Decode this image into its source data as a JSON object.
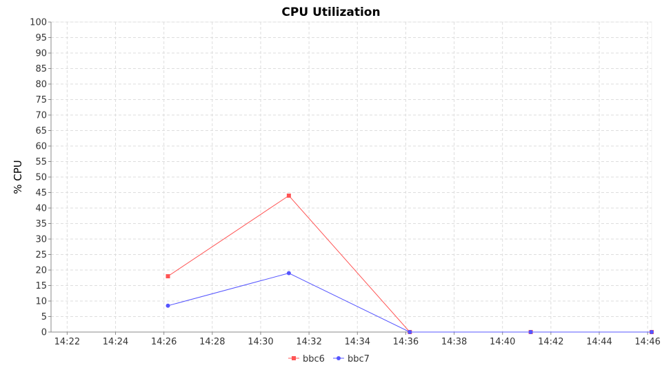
{
  "chart_data": {
    "type": "line",
    "title": "CPU Utilization",
    "xlabel": "",
    "ylabel": "% CPU",
    "x_ticks": [
      "14:22",
      "14:24",
      "14:26",
      "14:28",
      "14:30",
      "14:32",
      "14:34",
      "14:36",
      "14:38",
      "14:40",
      "14:42",
      "14:44",
      "14:46"
    ],
    "xlim": [
      "14:21:20",
      "14:46:10"
    ],
    "ylim": [
      0,
      100
    ],
    "y_ticks": [
      0,
      5,
      10,
      15,
      20,
      25,
      30,
      35,
      40,
      45,
      50,
      55,
      60,
      65,
      70,
      75,
      80,
      85,
      90,
      95,
      100
    ],
    "grid": true,
    "legend_position": "bottom",
    "series": [
      {
        "name": "bbc6",
        "color": "#ff5555",
        "marker": "square",
        "points": [
          {
            "x": "14:26:10",
            "y": 18
          },
          {
            "x": "14:31:10",
            "y": 44
          },
          {
            "x": "14:36:10",
            "y": 0
          },
          {
            "x": "14:41:10",
            "y": 0
          },
          {
            "x": "14:46:10",
            "y": 0
          }
        ]
      },
      {
        "name": "bbc7",
        "color": "#5555ff",
        "marker": "circle",
        "points": [
          {
            "x": "14:26:10",
            "y": 8.5
          },
          {
            "x": "14:31:10",
            "y": 19
          },
          {
            "x": "14:36:10",
            "y": 0
          },
          {
            "x": "14:41:10",
            "y": 0
          },
          {
            "x": "14:46:10",
            "y": 0
          }
        ]
      }
    ]
  }
}
